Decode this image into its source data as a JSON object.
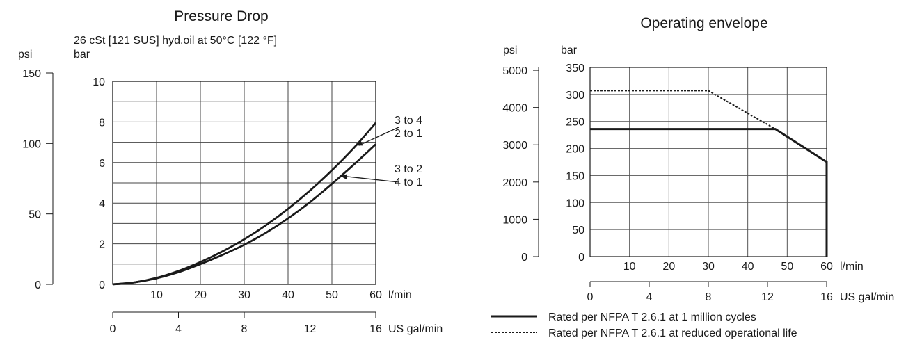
{
  "chart_data": [
    {
      "type": "line",
      "title": "Pressure Drop",
      "subtitle": "26 cSt [121 SUS] hyd.oil at 50°C [122 °F]",
      "y_unit_primary": "bar",
      "y_unit_secondary": "psi",
      "x_unit_primary": "l/min",
      "x_unit_secondary": "US gal/min",
      "xlim": [
        0,
        60
      ],
      "ylim": [
        0,
        10
      ],
      "secondary_ylim": [
        0,
        150
      ],
      "secondary_xlim": [
        0,
        16
      ],
      "x_ticks": [
        10,
        20,
        30,
        40,
        50,
        60
      ],
      "y_ticks": [
        0,
        2,
        4,
        6,
        8,
        10
      ],
      "secondary_y_ticks": [
        0,
        50,
        100,
        150
      ],
      "secondary_x_ticks": [
        0,
        4,
        8,
        12,
        16
      ],
      "grid": true,
      "series": [
        {
          "name": "3 to 4 / 2 to 1",
          "x": [
            0,
            5,
            10,
            15,
            20,
            25,
            30,
            35,
            40,
            45,
            50,
            55,
            60
          ],
          "y": [
            0,
            0.1,
            0.32,
            0.66,
            1.1,
            1.62,
            2.22,
            2.92,
            3.72,
            4.62,
            5.62,
            6.72,
            7.95
          ]
        },
        {
          "name": "3 to 2 / 4 to 1",
          "x": [
            0,
            5,
            10,
            15,
            20,
            25,
            30,
            35,
            40,
            45,
            50,
            55,
            60
          ],
          "y": [
            0,
            0.1,
            0.3,
            0.6,
            1.0,
            1.45,
            1.95,
            2.55,
            3.25,
            4.05,
            4.95,
            5.9,
            6.9
          ]
        }
      ],
      "annotations": [
        {
          "lines": [
            "3 to 4",
            "2 to 1"
          ],
          "series": 0,
          "at_x": 55.5
        },
        {
          "lines": [
            "3 to 2",
            "4 to 1"
          ],
          "series": 1,
          "at_x": 52
        }
      ]
    },
    {
      "type": "line",
      "title": "Operating envelope",
      "y_unit_primary": "bar",
      "y_unit_secondary": "psi",
      "x_unit_primary": "l/min",
      "x_unit_secondary": "US gal/min",
      "xlim": [
        0,
        60
      ],
      "ylim": [
        0,
        350
      ],
      "secondary_ylim_psi": [
        0,
        5076
      ],
      "secondary_xlim": [
        0,
        16
      ],
      "x_ticks": [
        10,
        20,
        30,
        40,
        50,
        60
      ],
      "y_ticks": [
        0,
        50,
        100,
        150,
        200,
        250,
        300,
        350
      ],
      "secondary_y_ticks": [
        0,
        1000,
        2000,
        3000,
        4000,
        5000
      ],
      "secondary_x_ticks": [
        0,
        4,
        8,
        12,
        16
      ],
      "grid": true,
      "series": [
        {
          "name": "Rated per NFPA T 2.6.1 at 1 million cycles",
          "style": "solid",
          "x": [
            0,
            47,
            60,
            60
          ],
          "y": [
            236,
            236,
            175,
            0
          ]
        },
        {
          "name": "Rated per NFPA T 2.6.1 at reduced operational life",
          "style": "dashed",
          "x": [
            0,
            30,
            47
          ],
          "y": [
            307,
            307,
            236
          ]
        }
      ],
      "legend": {
        "placement": "bottom",
        "entries": [
          "Rated per NFPA T 2.6.1 at 1 million cycles",
          "Rated per NFPA T 2.6.1 at reduced operational life"
        ]
      }
    }
  ]
}
